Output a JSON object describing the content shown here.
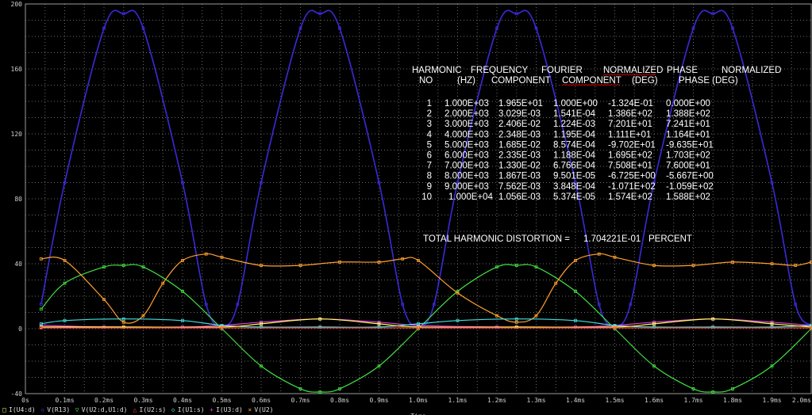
{
  "chart_data": {
    "type": "line",
    "x_unit": "ms",
    "xlim": [
      0,
      2.0
    ],
    "ylim": [
      -40,
      200
    ],
    "grid": true,
    "xlabel": "Time",
    "x_ticks": [
      "0s",
      "0.1ms",
      "0.2ms",
      "0.3ms",
      "0.4ms",
      "0.5ms",
      "0.6ms",
      "0.7ms",
      "0.8ms",
      "0.9ms",
      "1.0ms",
      "1.1ms",
      "1.2ms",
      "1.3ms",
      "1.4ms",
      "1.5ms",
      "1.6ms",
      "1.7ms",
      "1.8ms",
      "1.9ms",
      "2.0ms"
    ],
    "y_ticks": [
      "-40",
      "0",
      "40",
      "80",
      "120",
      "160",
      "200"
    ],
    "legend_position": "bottom-left",
    "legend": [
      {
        "marker": "□",
        "label": "I(U4:d)",
        "color": "#ffff60"
      },
      {
        "marker": "◇",
        "label": "V(R13)",
        "color": "#3030e0"
      },
      {
        "marker": "▽",
        "label": "V(U2:d,U1:d)",
        "color": "#40e040"
      },
      {
        "marker": "△",
        "label": "I(U2:s)",
        "color": "#ff4040"
      },
      {
        "marker": "◇",
        "label": "I(U1:s)",
        "color": "#40e0e0"
      },
      {
        "marker": "+",
        "label": "I(U3:d)",
        "color": "#e040e0"
      },
      {
        "marker": "×",
        "label": "V(U2)",
        "color": "#ffa030"
      }
    ],
    "series": [
      {
        "label": "V(R13)",
        "color": "#3a2ad8",
        "x": [
          0.04,
          0.1,
          0.2,
          0.25,
          0.3,
          0.4,
          0.46,
          0.5,
          0.54,
          0.6,
          0.7,
          0.75,
          0.8,
          0.9,
          0.96,
          1.0,
          1.04,
          1.1,
          1.2,
          1.25,
          1.3,
          1.4,
          1.46,
          1.5,
          1.54,
          1.6,
          1.7,
          1.75,
          1.8,
          1.9,
          1.96,
          2.0
        ],
        "y": [
          15,
          90,
          185,
          194,
          185,
          90,
          15,
          2,
          15,
          90,
          185,
          194,
          185,
          90,
          15,
          2,
          15,
          90,
          185,
          194,
          185,
          90,
          15,
          2,
          15,
          90,
          185,
          194,
          185,
          90,
          15,
          2
        ]
      },
      {
        "label": "V(U2:d,U1:d)",
        "color": "#40e040",
        "x": [
          0.04,
          0.1,
          0.2,
          0.25,
          0.3,
          0.4,
          0.5,
          0.6,
          0.7,
          0.75,
          0.8,
          0.9,
          1.0,
          1.1,
          1.2,
          1.25,
          1.3,
          1.4,
          1.5,
          1.6,
          1.7,
          1.75,
          1.8,
          1.9,
          2.0
        ],
        "y": [
          12,
          28,
          38,
          39,
          38,
          23,
          0,
          -23,
          -37,
          -39,
          -37,
          -23,
          0,
          23,
          38,
          39,
          38,
          23,
          0,
          -23,
          -37,
          -39,
          -37,
          -23,
          0
        ]
      },
      {
        "label": "V(U2)",
        "color": "#ffa030",
        "x": [
          0.04,
          0.1,
          0.2,
          0.25,
          0.3,
          0.35,
          0.4,
          0.46,
          0.5,
          0.6,
          0.7,
          0.8,
          0.9,
          0.96,
          1.0,
          1.1,
          1.2,
          1.25,
          1.3,
          1.35,
          1.4,
          1.46,
          1.5,
          1.6,
          1.7,
          1.8,
          1.9,
          1.96,
          2.0
        ],
        "y": [
          43,
          42,
          18,
          4,
          8,
          28,
          42,
          46,
          44,
          39,
          39,
          41,
          41,
          43,
          42,
          22,
          8,
          4,
          8,
          28,
          42,
          46,
          44,
          39,
          39,
          41,
          40,
          39,
          41
        ]
      },
      {
        "label": "I(U3:d)",
        "color": "#e040e0",
        "x": [
          0.04,
          0.2,
          0.4,
          0.5,
          0.6,
          0.75,
          0.9,
          1.0,
          1.2,
          1.4,
          1.5,
          1.6,
          1.75,
          1.9,
          2.0
        ],
        "y": [
          2,
          1,
          1,
          2,
          4,
          6,
          4,
          2,
          1,
          1,
          2,
          4,
          6,
          4,
          2
        ]
      },
      {
        "label": "I(U1:s)",
        "color": "#40e0e0",
        "x": [
          0.04,
          0.1,
          0.25,
          0.4,
          0.5,
          0.6,
          0.75,
          0.9,
          1.0,
          1.1,
          1.25,
          1.4,
          1.5,
          1.6,
          1.75,
          1.9,
          2.0
        ],
        "y": [
          3,
          5,
          6,
          5,
          2,
          1,
          1,
          1,
          3,
          5,
          6,
          5,
          2,
          1,
          1,
          1,
          2
        ]
      },
      {
        "label": "I(U4:d)",
        "color": "#ffff60",
        "x": [
          0.04,
          0.25,
          0.5,
          0.6,
          0.75,
          0.9,
          1.0,
          1.25,
          1.5,
          1.6,
          1.75,
          1.9,
          2.0
        ],
        "y": [
          1,
          1,
          1,
          3,
          6,
          3,
          1,
          1,
          1,
          3,
          6,
          3,
          1
        ]
      },
      {
        "label": "I(U2:s)",
        "color": "#ff4040",
        "x": [
          0.04,
          0.5,
          1.0,
          1.5,
          2.0
        ],
        "y": [
          0.5,
          0.5,
          0.5,
          0.5,
          0.5
        ]
      }
    ]
  },
  "fourier": {
    "header1": [
      "HARMONIC",
      "FREQUENCY",
      "FOURIER",
      "NORMALIZED",
      "PHASE",
      "NORMALIZED"
    ],
    "header2": [
      "NO",
      "(HZ)",
      "COMPONENT",
      "COMPONENT",
      "(DEG)",
      "PHASE (DEG)"
    ],
    "rows": [
      [
        "1",
        "1.000E+03",
        "1.965E+01",
        "1.000E+00",
        "-1.324E-01",
        "0.000E+00"
      ],
      [
        "2",
        "2.000E+03",
        "3.029E-03",
        "1.541E-04",
        "1.386E+02",
        "1.388E+02"
      ],
      [
        "3",
        "3.000E+03",
        "2.406E-02",
        "1.224E-03",
        "7.201E+01",
        "7.241E+01"
      ],
      [
        "4",
        "4.000E+03",
        "2.348E-03",
        "1.195E-04",
        "1.111E+01",
        "1.164E+01"
      ],
      [
        "5",
        "5.000E+03",
        "1.685E-02",
        "8.574E-04",
        "-9.702E+01",
        "-9.635E+01"
      ],
      [
        "6",
        "6.000E+03",
        "2.335E-03",
        "1.188E-04",
        "1.695E+02",
        "1.703E+02"
      ],
      [
        "7",
        "7.000E+03",
        "1.330E-02",
        "6.766E-04",
        "7.508E+01",
        "7.600E+01"
      ],
      [
        "8",
        "8.000E+03",
        "1.867E-03",
        "9.501E-05",
        "-6.725E+00",
        "-5.667E+00"
      ],
      [
        "9",
        "9.000E+03",
        "7.562E-03",
        "3.848E-04",
        "-1.071E+02",
        "-1.059E+02"
      ],
      [
        "10",
        "1.000E+04",
        "1.056E-03",
        "5.374E-05",
        "1.574E+02",
        "1.588E+02"
      ]
    ],
    "thd_label": "TOTAL HARMONIC DISTORTION =",
    "thd_value": "1.704221E-01",
    "thd_unit": "PERCENT"
  }
}
